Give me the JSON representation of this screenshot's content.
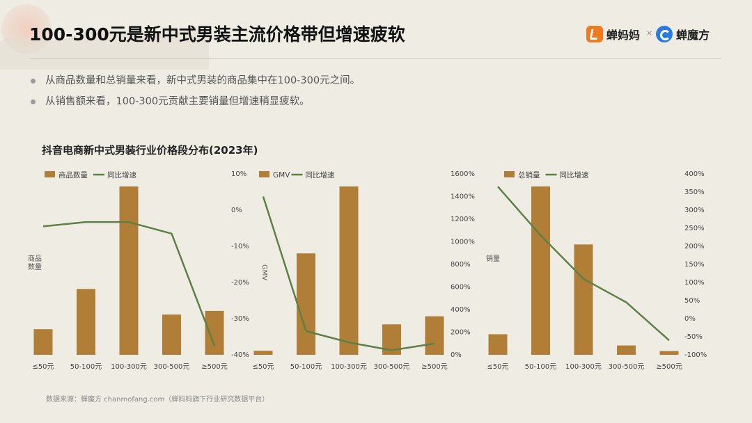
{
  "title": "100-300元是新中式男装主流价格带但增速疲软",
  "logos": {
    "chanmama": "蝉妈妈",
    "separator": "×",
    "chanmofang": "蝉魔方"
  },
  "bullets": [
    "从商品数量和总销量来看，新中式男装的商品集中在100-300元之间。",
    "从销售额来看，100-300元贡献主要销量但增速稍显疲软。"
  ],
  "chart_group_title": "抖音电商新中式男装行业价格段分布(2023年)",
  "source": "数据来源：蝉魔方 chanmofang.com（蝉妈妈旗下行业研究数据平台）",
  "colors": {
    "bar": "#b07e37",
    "line": "#5e8046"
  },
  "chart_data": [
    {
      "type": "bar+line",
      "categories": [
        "≤50元",
        "50-100元",
        "100-300元",
        "300-500元",
        "≥500元"
      ],
      "bar_series": {
        "name": "商品数量",
        "values": [
          14,
          36,
          92,
          22,
          24
        ]
      },
      "line_series": {
        "name": "同比增速",
        "values": [
          -4.5,
          -3.3,
          -3.3,
          -6.5,
          -37.5
        ]
      },
      "ylabel": "商品数量",
      "y_right_ticks": [
        "10%",
        "0%",
        "-10%",
        "-20%",
        "-30%",
        "-40%"
      ],
      "y_right_range": [
        -40,
        10
      ],
      "legend_position": "top-left"
    },
    {
      "type": "bar+line",
      "categories": [
        "≤50元",
        "50-100元",
        "100-300元",
        "300-500元",
        "≥500元"
      ],
      "bar_series": {
        "name": "GMV",
        "values": [
          2,
          50,
          83,
          15,
          19
        ]
      },
      "line_series": {
        "name": "同比增速",
        "values": [
          1400,
          210,
          110,
          40,
          100
        ]
      },
      "ylabel": "GMV",
      "y_right_ticks": [
        "1600%",
        "1400%",
        "1200%",
        "1000%",
        "800%",
        "600%",
        "400%",
        "200%",
        "0%"
      ],
      "y_right_range": [
        0,
        1600
      ],
      "legend_position": "top-left"
    },
    {
      "type": "bar+line",
      "categories": [
        "≤50元",
        "50-100元",
        "100-300元",
        "300-500元",
        "≥500元"
      ],
      "bar_series": {
        "name": "总销量",
        "values": [
          11,
          90,
          59,
          5,
          2
        ]
      },
      "line_series": {
        "name": "同比增速",
        "values": [
          365,
          230,
          110,
          45,
          -60
        ]
      },
      "ylabel": "销量",
      "y_right_ticks": [
        "400%",
        "350%",
        "300%",
        "250%",
        "200%",
        "150%",
        "100%",
        "50%",
        "0%",
        "-50%",
        "-100%"
      ],
      "y_right_range": [
        -100,
        400
      ],
      "legend_position": "top-left"
    }
  ]
}
